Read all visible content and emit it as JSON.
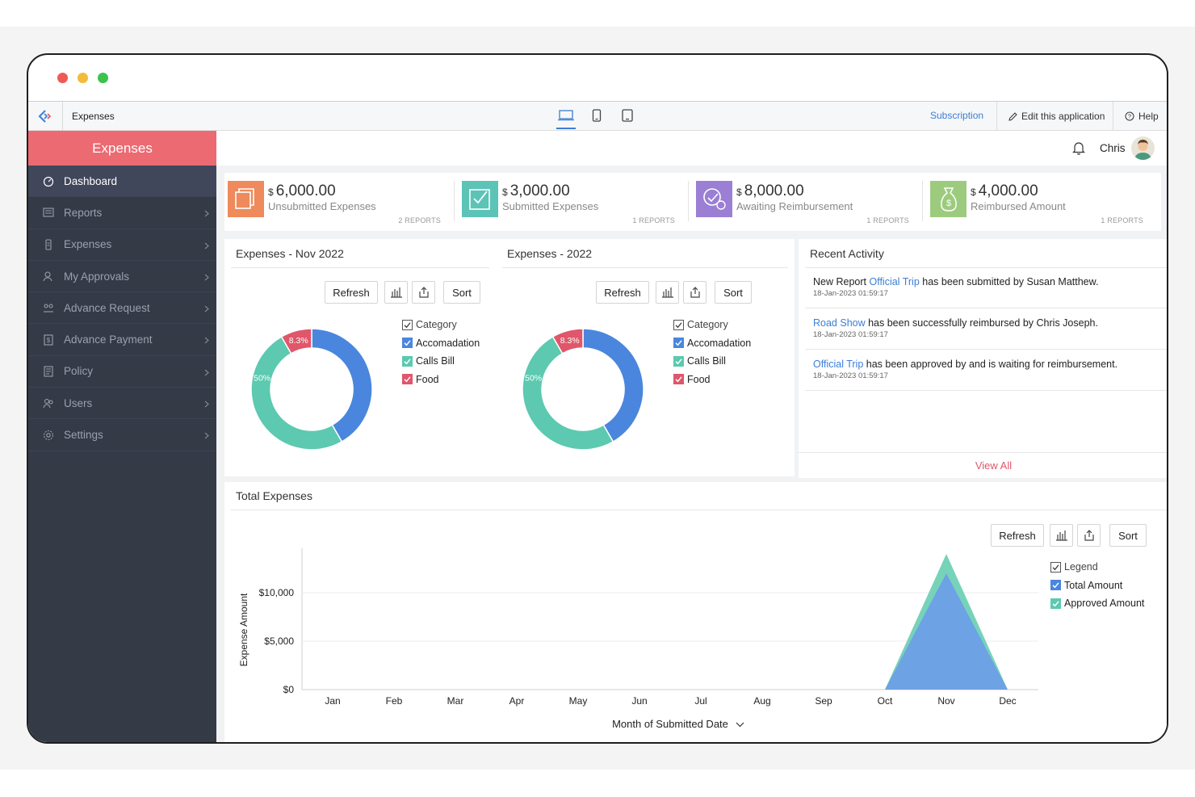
{
  "app": {
    "name": "Expenses"
  },
  "appbar": {
    "subscription": "Subscription",
    "edit_app": "Edit this application",
    "help": "Help"
  },
  "sidebar": {
    "header": "Expenses",
    "items": [
      {
        "label": "Dashboard",
        "icon": "dashboard-icon",
        "active": true
      },
      {
        "label": "Reports",
        "icon": "reports-icon"
      },
      {
        "label": "Expenses",
        "icon": "expenses-icon"
      },
      {
        "label": "My Approvals",
        "icon": "approvals-icon"
      },
      {
        "label": "Advance Request",
        "icon": "advance-request-icon"
      },
      {
        "label": "Advance Payment",
        "icon": "advance-payment-icon"
      },
      {
        "label": "Policy",
        "icon": "policy-icon"
      },
      {
        "label": "Users",
        "icon": "users-icon"
      },
      {
        "label": "Settings",
        "icon": "settings-icon"
      }
    ]
  },
  "topbar": {
    "user": "Chris"
  },
  "summary": [
    {
      "currency": "$",
      "amount": "6,000.00",
      "label": "Unsubmitted Expenses",
      "reports": "2 REPORTS",
      "color": "#ee8a5b"
    },
    {
      "currency": "$",
      "amount": "3,000.00",
      "label": "Submitted Expenses",
      "reports": "1 REPORTS",
      "color": "#5cc3b7"
    },
    {
      "currency": "$",
      "amount": "8,000.00",
      "label": "Awaiting Reimbursement",
      "reports": "1 REPORTS",
      "color": "#9b7fd4"
    },
    {
      "currency": "$",
      "amount": "4,000.00",
      "label": "Reimbursed Amount",
      "reports": "1 REPORTS",
      "color": "#9dcb7e"
    }
  ],
  "controls": {
    "refresh": "Refresh",
    "sort": "Sort"
  },
  "donuts": [
    {
      "title": "Expenses - Nov 2022"
    },
    {
      "title": "Expenses - 2022"
    }
  ],
  "donut_legend": {
    "header": "Category",
    "items": [
      "Accomadation",
      "Calls Bill",
      "Food"
    ]
  },
  "activity": {
    "title": "Recent Activity",
    "items": [
      {
        "pre": "New Report ",
        "link": "Official Trip",
        "post": " has been submitted by Susan Matthew.",
        "time": "18-Jan-2023 01:59:17"
      },
      {
        "pre": "",
        "link": "Road Show",
        "post": " has been successfully reimbursed by Chris Joseph.",
        "time": "18-Jan-2023 01:59:17"
      },
      {
        "pre": "",
        "link": "Official Trip",
        "post": " has been approved by and is waiting for reimbursement.",
        "time": "18-Jan-2023 01:59:17"
      }
    ],
    "view_all": "View All"
  },
  "total": {
    "title": "Total Expenses",
    "legend_header": "Legend",
    "legend_items": [
      "Total Amount",
      "Approved Amount"
    ],
    "x_axis_label": "Month of Submitted Date"
  },
  "chart_data": [
    {
      "type": "pie",
      "title": "Expenses - Nov 2022",
      "categories": [
        "Accomadation",
        "Calls Bill",
        "Food"
      ],
      "values": [
        41.7,
        50,
        8.3
      ],
      "labels": [
        "",
        "50%",
        "8.3%"
      ],
      "colors": [
        "#4a86dd",
        "#5cc9b0",
        "#e0566a"
      ]
    },
    {
      "type": "pie",
      "title": "Expenses - 2022",
      "categories": [
        "Accomadation",
        "Calls Bill",
        "Food"
      ],
      "values": [
        41.7,
        50,
        8.3
      ],
      "labels": [
        "",
        "50%",
        "8.3%"
      ],
      "colors": [
        "#4a86dd",
        "#5cc9b0",
        "#e0566a"
      ]
    },
    {
      "type": "area",
      "title": "Total Expenses",
      "xlabel": "Month of Submitted Date",
      "ylabel": "Expense Amount",
      "categories": [
        "Jan",
        "Feb",
        "Mar",
        "Apr",
        "May",
        "Jun",
        "Jul",
        "Aug",
        "Sep",
        "Oct",
        "Nov",
        "Dec"
      ],
      "ylim": [
        0,
        14000
      ],
      "yticks": [
        0,
        5000,
        10000
      ],
      "ytick_labels": [
        "$0",
        "$5,000",
        "$10,000"
      ],
      "series": [
        {
          "name": "Approved Amount",
          "color": "#6fd1b6",
          "values": [
            0,
            0,
            0,
            0,
            0,
            0,
            0,
            0,
            0,
            0,
            14000,
            0
          ]
        },
        {
          "name": "Total Amount",
          "color": "#6d9fe6",
          "values": [
            0,
            0,
            0,
            0,
            0,
            0,
            0,
            0,
            0,
            0,
            12000,
            0
          ]
        }
      ]
    }
  ]
}
